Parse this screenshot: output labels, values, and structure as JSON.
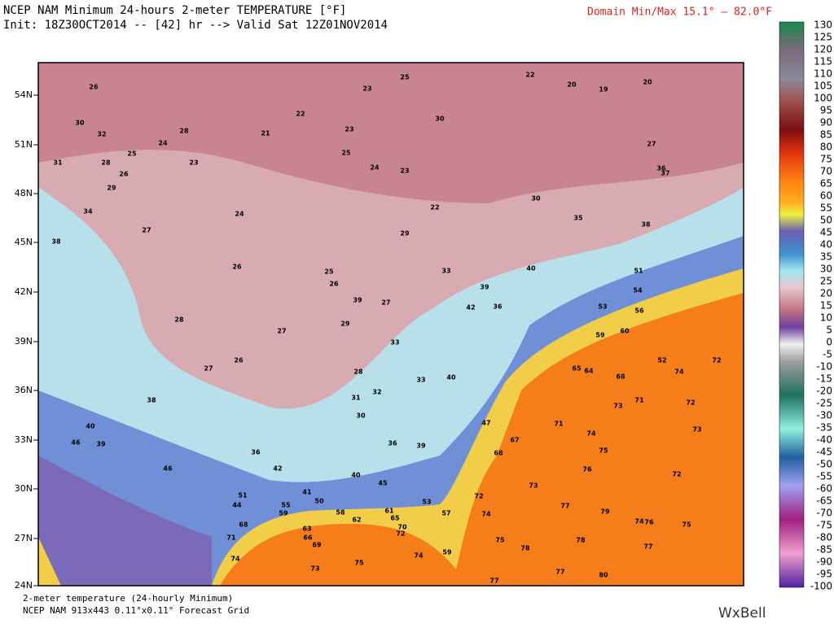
{
  "header": {
    "title": "NCEP NAM Minimum 24-hours 2-meter TEMPERATURE [°F]",
    "init": "Init: 18Z30OCT2014 -- [42] hr --> Valid Sat 12Z01NOV2014",
    "domain_minmax": "Domain Min/Max  15.1° –  82.0°F"
  },
  "footer": {
    "line1": "2-meter temperature (24-hourly Minimum)",
    "line2": "NCEP NAM 913x443 0.11°x0.11° Forecast Grid",
    "brand": "WxBell"
  },
  "latitude_labels": [
    "54N",
    "51N",
    "48N",
    "45N",
    "42N",
    "39N",
    "36N",
    "33N",
    "30N",
    "27N",
    "24N"
  ],
  "colorbar_labels": [
    130,
    125,
    120,
    115,
    110,
    105,
    100,
    95,
    90,
    85,
    80,
    75,
    70,
    65,
    60,
    55,
    50,
    45,
    40,
    35,
    30,
    25,
    20,
    15,
    10,
    5,
    0,
    -5,
    -10,
    -15,
    -20,
    -25,
    -30,
    -35,
    -40,
    -45,
    -50,
    -55,
    -60,
    -65,
    -70,
    -75,
    -80,
    -85,
    -90,
    -95,
    -100
  ],
  "stations": [
    26,
    30,
    32,
    25,
    31,
    28,
    26,
    24,
    23,
    28,
    22,
    21,
    23,
    25,
    24,
    23,
    22,
    25,
    23,
    30,
    22,
    20,
    19,
    20,
    27,
    36,
    37,
    30,
    35,
    38,
    29,
    34,
    38,
    27,
    24,
    26,
    25,
    26,
    29,
    40,
    39,
    42,
    36,
    33,
    39,
    27,
    28,
    27,
    29,
    33,
    26,
    27,
    28,
    33,
    40,
    31,
    32,
    30,
    38,
    40,
    46,
    39,
    46,
    36,
    42,
    51,
    44,
    59,
    55,
    58,
    62,
    63,
    66,
    69,
    71,
    74,
    73,
    75,
    68,
    36,
    39,
    47,
    67,
    68,
    73,
    71,
    74,
    75,
    76,
    72,
    73,
    72,
    71,
    73,
    74,
    72,
    68,
    64,
    65,
    59,
    60,
    56,
    54,
    51,
    53,
    52,
    72,
    74,
    77,
    79,
    74,
    76,
    75,
    78,
    77,
    78,
    75,
    74,
    59,
    57,
    53,
    61,
    65,
    70,
    72,
    77,
    77,
    80,
    45,
    40,
    50,
    41
  ]
}
